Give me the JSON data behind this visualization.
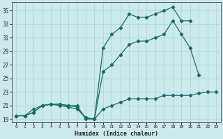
{
  "xlabel": "Humidex (Indice chaleur)",
  "background_color": "#cce9eb",
  "grid_color": "#a8d4d8",
  "line_color": "#1a6e6a",
  "xlim": [
    -0.5,
    23.5
  ],
  "ylim": [
    18.5,
    36.2
  ],
  "x_ticks": [
    0,
    1,
    2,
    3,
    4,
    5,
    6,
    7,
    8,
    9,
    10,
    11,
    12,
    13,
    14,
    15,
    16,
    17,
    18,
    19,
    20,
    21,
    22,
    23
  ],
  "y_ticks": [
    19,
    21,
    23,
    25,
    27,
    29,
    31,
    33,
    35
  ],
  "series1_x": [
    0,
    1,
    2,
    3,
    4,
    5,
    6,
    7,
    8,
    9,
    10,
    11,
    12,
    13,
    14,
    15,
    16,
    17,
    18,
    19,
    20,
    21,
    22,
    23
  ],
  "series1_y": [
    19.5,
    19.5,
    20.0,
    21.0,
    21.2,
    21.0,
    20.8,
    20.5,
    19.2,
    19.0,
    20.5,
    21.0,
    21.5,
    22.0,
    22.0,
    22.0,
    22.0,
    22.5,
    22.5,
    22.5,
    22.5,
    22.8,
    23.0,
    23.0
  ],
  "series2_x": [
    0,
    1,
    2,
    3,
    4,
    5,
    6,
    7,
    8,
    9,
    10,
    11,
    12,
    13,
    14,
    15,
    16,
    17,
    18,
    19,
    20,
    21,
    22,
    23
  ],
  "series2_y": [
    19.5,
    19.5,
    20.0,
    21.0,
    21.2,
    21.2,
    21.0,
    21.0,
    19.0,
    19.0,
    26.0,
    27.0,
    28.5,
    30.0,
    30.5,
    30.5,
    31.0,
    31.5,
    33.5,
    31.5,
    29.5,
    25.5,
    null,
    null
  ],
  "series3_x": [
    0,
    1,
    2,
    3,
    4,
    5,
    6,
    7,
    8,
    9,
    10,
    11,
    12,
    13,
    14,
    15,
    16,
    17,
    18,
    19,
    20,
    21,
    22,
    23
  ],
  "series3_y": [
    19.5,
    19.5,
    20.5,
    21.0,
    21.2,
    21.2,
    21.0,
    20.8,
    19.2,
    19.0,
    29.5,
    31.5,
    32.5,
    34.5,
    34.0,
    34.0,
    34.5,
    35.0,
    35.5,
    33.5,
    33.5,
    null,
    null,
    null
  ]
}
